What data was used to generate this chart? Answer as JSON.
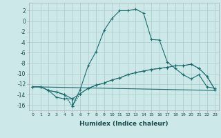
{
  "title": "",
  "xlabel": "Humidex (Indice chaleur)",
  "bg_color": "#cce8e8",
  "grid_color": "#aacccc",
  "line_color": "#1a6b6b",
  "xlim": [
    -0.5,
    23.5
  ],
  "ylim": [
    -17,
    3.5
  ],
  "xticks": [
    0,
    1,
    2,
    3,
    4,
    5,
    6,
    7,
    8,
    9,
    10,
    11,
    12,
    13,
    14,
    15,
    16,
    17,
    18,
    19,
    20,
    21,
    22,
    23
  ],
  "yticks": [
    2,
    0,
    -2,
    -4,
    -6,
    -8,
    -10,
    -12,
    -14,
    -16
  ],
  "curve1_x": [
    0,
    1,
    2,
    3,
    4,
    5,
    5,
    6,
    7,
    8,
    9,
    10,
    11,
    12,
    13,
    14,
    15,
    16,
    17,
    18,
    19,
    20,
    21,
    22,
    23
  ],
  "curve1_y": [
    -12.5,
    -12.5,
    -13.2,
    -14.5,
    -14.8,
    -14.8,
    -16.2,
    -13.0,
    -8.5,
    -5.8,
    -1.8,
    0.5,
    2.0,
    2.0,
    2.3,
    1.5,
    -3.5,
    -3.6,
    -7.8,
    -9.0,
    -10.2,
    -11.0,
    -10.2,
    -12.5,
    -12.8
  ],
  "curve2_x": [
    0,
    1,
    2,
    3,
    4,
    5,
    6,
    7,
    8,
    9,
    10,
    11,
    12,
    13,
    14,
    15,
    16,
    17,
    18,
    19,
    20,
    21,
    22,
    23
  ],
  "curve2_y": [
    -12.5,
    -12.5,
    -13.2,
    -13.5,
    -14.0,
    -14.8,
    -13.8,
    -12.8,
    -12.2,
    -11.8,
    -11.2,
    -10.8,
    -10.2,
    -9.8,
    -9.5,
    -9.2,
    -9.0,
    -8.8,
    -8.5,
    -8.5,
    -8.2,
    -9.0,
    -10.5,
    -13.0
  ],
  "curve3_x": [
    0,
    23
  ],
  "curve3_y": [
    -12.5,
    -13.2
  ],
  "curve4_x": [
    0,
    1,
    2,
    3,
    4,
    5,
    6,
    7,
    8,
    9,
    10,
    11,
    12,
    13,
    14,
    15,
    16,
    17,
    18,
    19,
    20,
    21,
    22,
    23
  ],
  "curve4_y": [
    -12.5,
    -12.5,
    -13.2,
    -13.5,
    -14.0,
    -16.2,
    -13.8,
    -12.8,
    -12.2,
    -11.8,
    -11.2,
    -10.8,
    -10.2,
    -9.8,
    -9.5,
    -9.2,
    -9.0,
    -8.8,
    -8.5,
    -8.5,
    -8.2,
    -9.0,
    -10.5,
    -13.0
  ]
}
